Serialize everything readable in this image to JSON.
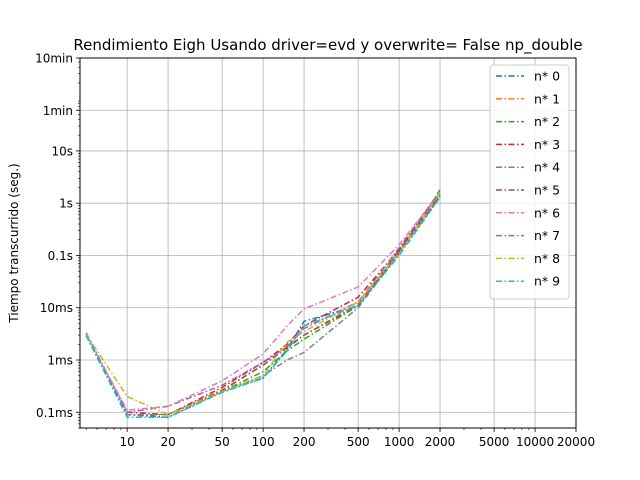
{
  "chart_data": {
    "type": "line",
    "title": "Rendimiento   Eigh Usando driver=evd y overwrite= False np_double",
    "xlabel": "",
    "ylabel": "Tiempo transcurrido (seg.)",
    "xscale": "log",
    "yscale": "log",
    "xlim": [
      4.5,
      20000
    ],
    "ylim": [
      5e-05,
      600
    ],
    "grid": true,
    "legend_position": "top-right",
    "x_ticks": [
      {
        "value": 10,
        "label": "10"
      },
      {
        "value": 20,
        "label": "20"
      },
      {
        "value": 50,
        "label": "50"
      },
      {
        "value": 100,
        "label": "100"
      },
      {
        "value": 200,
        "label": "200"
      },
      {
        "value": 500,
        "label": "500"
      },
      {
        "value": 1000,
        "label": "1000"
      },
      {
        "value": 2000,
        "label": "2000"
      },
      {
        "value": 5000,
        "label": "5000"
      },
      {
        "value": 10000,
        "label": "10000"
      },
      {
        "value": 20000,
        "label": "20000"
      }
    ],
    "y_ticks": [
      {
        "value": 0.0001,
        "label": "0.1ms"
      },
      {
        "value": 0.001,
        "label": "1ms"
      },
      {
        "value": 0.01,
        "label": "10ms"
      },
      {
        "value": 0.1,
        "label": "0.1s"
      },
      {
        "value": 1,
        "label": "1s"
      },
      {
        "value": 10,
        "label": "10s"
      },
      {
        "value": 60,
        "label": "1min"
      },
      {
        "value": 600,
        "label": "10min"
      }
    ],
    "x": [
      5,
      10,
      20,
      50,
      100,
      150,
      200,
      500,
      1000,
      2000
    ],
    "series": [
      {
        "name": "n* 0",
        "color": "#1f77b4",
        "values": [
          0.003,
          9e-05,
          8e-05,
          0.00025,
          0.00045,
          0.0016,
          0.0055,
          0.011,
          0.12,
          1.4
        ]
      },
      {
        "name": "n* 1",
        "color": "#ff7f0e",
        "values": [
          0.003,
          9e-05,
          9e-05,
          0.00027,
          0.0008,
          0.0018,
          0.003,
          0.012,
          0.13,
          1.5
        ]
      },
      {
        "name": "n* 2",
        "color": "#2ca02c",
        "values": [
          0.003,
          9e-05,
          9e-05,
          0.00025,
          0.0006,
          0.0015,
          0.0025,
          0.011,
          0.11,
          1.8
        ]
      },
      {
        "name": "n* 3",
        "color": "#d62728",
        "values": [
          0.003,
          0.0001,
          9e-05,
          0.0003,
          0.0009,
          0.002,
          0.0045,
          0.016,
          0.13,
          1.6
        ]
      },
      {
        "name": "n* 4",
        "color": "#9467bd",
        "values": [
          0.0033,
          0.0001,
          0.00013,
          0.00033,
          0.0009,
          0.0018,
          0.004,
          0.013,
          0.14,
          1.7
        ]
      },
      {
        "name": "n* 5",
        "color": "#8c564b",
        "values": [
          0.003,
          9e-05,
          9e-05,
          0.00026,
          0.0008,
          0.0017,
          0.003,
          0.011,
          0.12,
          1.5
        ]
      },
      {
        "name": "n* 6",
        "color": "#e377c2",
        "values": [
          0.003,
          0.00011,
          0.00013,
          0.0004,
          0.0013,
          0.0045,
          0.0095,
          0.025,
          0.16,
          1.6
        ]
      },
      {
        "name": "n* 7",
        "color": "#7f7f7f",
        "values": [
          0.003,
          9e-05,
          9e-05,
          0.00025,
          0.0005,
          0.001,
          0.0014,
          0.01,
          0.11,
          1.3
        ]
      },
      {
        "name": "n* 8",
        "color": "#bcbd22",
        "values": [
          0.0031,
          0.0002,
          9e-05,
          0.00025,
          0.0005,
          0.0022,
          0.0035,
          0.013,
          0.11,
          1.6
        ]
      },
      {
        "name": "n* 9",
        "color": "#17becf",
        "values": [
          0.0029,
          8e-05,
          8e-05,
          0.00024,
          0.00045,
          0.0015,
          0.0045,
          0.011,
          0.1,
          1.3
        ]
      }
    ]
  }
}
